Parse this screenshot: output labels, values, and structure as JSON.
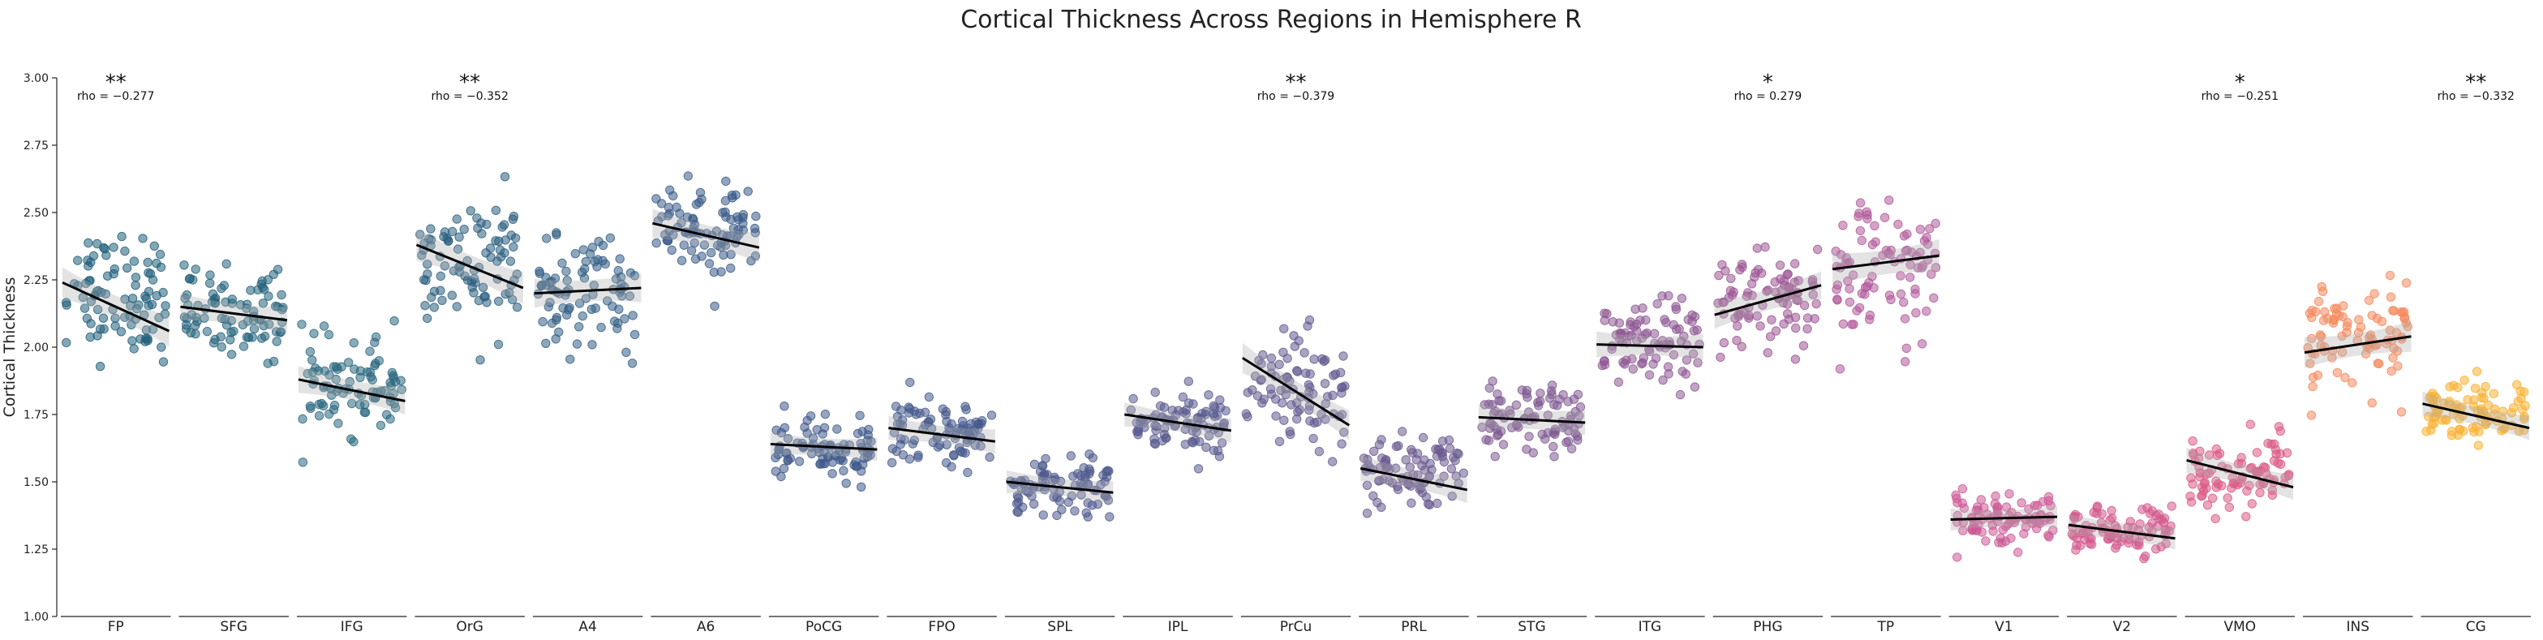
{
  "chart_data": {
    "type": "scatter",
    "title": "Cortical Thickness Across Regions in Hemisphere R",
    "ylabel": "Cortical Thickness",
    "xlabel": "",
    "ylim": [
      1.0,
      3.0
    ],
    "yticks": [
      "1.00",
      "1.25",
      "1.50",
      "1.75",
      "2.00",
      "2.25",
      "2.50",
      "2.75",
      "3.00"
    ],
    "grid": false,
    "regions": [
      {
        "label": "FP",
        "color": "#1f5f7a",
        "center": 2.2,
        "spread": 0.15,
        "trend": [
          2.24,
          2.06
        ],
        "stars": "**",
        "rho": "rho = −0.277"
      },
      {
        "label": "SFG",
        "color": "#24637c",
        "center": 2.13,
        "spread": 0.11,
        "trend": [
          2.15,
          2.1
        ],
        "stars": "",
        "rho": ""
      },
      {
        "label": "IFG",
        "color": "#2a6780",
        "center": 1.86,
        "spread": 0.11,
        "trend": [
          1.88,
          1.8
        ],
        "stars": "",
        "rho": ""
      },
      {
        "label": "OrG",
        "color": "#2c5f80",
        "center": 2.3,
        "spread": 0.16,
        "trend": [
          2.38,
          2.22
        ],
        "stars": "**",
        "rho": "rho = −0.352"
      },
      {
        "label": "A4",
        "color": "#335e85",
        "center": 2.19,
        "spread": 0.13,
        "trend": [
          2.2,
          2.22
        ],
        "stars": "",
        "rho": ""
      },
      {
        "label": "A6",
        "color": "#3a5b88",
        "center": 2.43,
        "spread": 0.13,
        "trend": [
          2.46,
          2.37
        ],
        "stars": "",
        "rho": ""
      },
      {
        "label": "PoCG",
        "color": "#3f5a8a",
        "center": 1.62,
        "spread": 0.07,
        "trend": [
          1.64,
          1.62
        ],
        "stars": "",
        "rho": ""
      },
      {
        "label": "FPO",
        "color": "#465a8c",
        "center": 1.68,
        "spread": 0.08,
        "trend": [
          1.7,
          1.65
        ],
        "stars": "",
        "rho": ""
      },
      {
        "label": "SPL",
        "color": "#4f5a8d",
        "center": 1.48,
        "spread": 0.07,
        "trend": [
          1.5,
          1.46
        ],
        "stars": "",
        "rho": ""
      },
      {
        "label": "IPL",
        "color": "#5a5b8f",
        "center": 1.72,
        "spread": 0.08,
        "trend": [
          1.75,
          1.69
        ],
        "stars": "",
        "rho": ""
      },
      {
        "label": "PrCu",
        "color": "#625a90",
        "center": 1.85,
        "spread": 0.14,
        "trend": [
          1.96,
          1.71
        ],
        "stars": "**",
        "rho": "rho = −0.379"
      },
      {
        "label": "PRL",
        "color": "#6a5a90",
        "center": 1.52,
        "spread": 0.1,
        "trend": [
          1.55,
          1.47
        ],
        "stars": "",
        "rho": ""
      },
      {
        "label": "STG",
        "color": "#7f5a92",
        "center": 1.73,
        "spread": 0.09,
        "trend": [
          1.74,
          1.72
        ],
        "stars": "",
        "rho": ""
      },
      {
        "label": "ITG",
        "color": "#8e5893",
        "center": 2.02,
        "spread": 0.1,
        "trend": [
          2.01,
          2.0
        ],
        "stars": "",
        "rho": ""
      },
      {
        "label": "PHG",
        "color": "#9c5694",
        "center": 2.17,
        "spread": 0.12,
        "trend": [
          2.12,
          2.23
        ],
        "stars": "*",
        "rho": "rho = 0.279"
      },
      {
        "label": "TP",
        "color": "#b05a9a",
        "center": 2.28,
        "spread": 0.17,
        "trend": [
          2.29,
          2.34
        ],
        "stars": "",
        "rho": ""
      },
      {
        "label": "V1",
        "color": "#cc5a95",
        "center": 1.37,
        "spread": 0.06,
        "trend": [
          1.36,
          1.37
        ],
        "stars": "",
        "rho": ""
      },
      {
        "label": "V2",
        "color": "#d3598c",
        "center": 1.32,
        "spread": 0.06,
        "trend": [
          1.34,
          1.29
        ],
        "stars": "",
        "rho": ""
      },
      {
        "label": "VMO",
        "color": "#db5b86",
        "center": 1.53,
        "spread": 0.09,
        "trend": [
          1.58,
          1.48
        ],
        "stars": "*",
        "rho": "rho = −0.251"
      },
      {
        "label": "INS",
        "color": "#f48a5e",
        "center": 2.02,
        "spread": 0.15,
        "trend": [
          1.98,
          2.04
        ],
        "stars": "",
        "rho": ""
      },
      {
        "label": "CG",
        "color": "#f9b233",
        "center": 1.76,
        "spread": 0.08,
        "trend": [
          1.79,
          1.7
        ],
        "stars": "**",
        "rho": "rho = −0.332"
      }
    ]
  }
}
